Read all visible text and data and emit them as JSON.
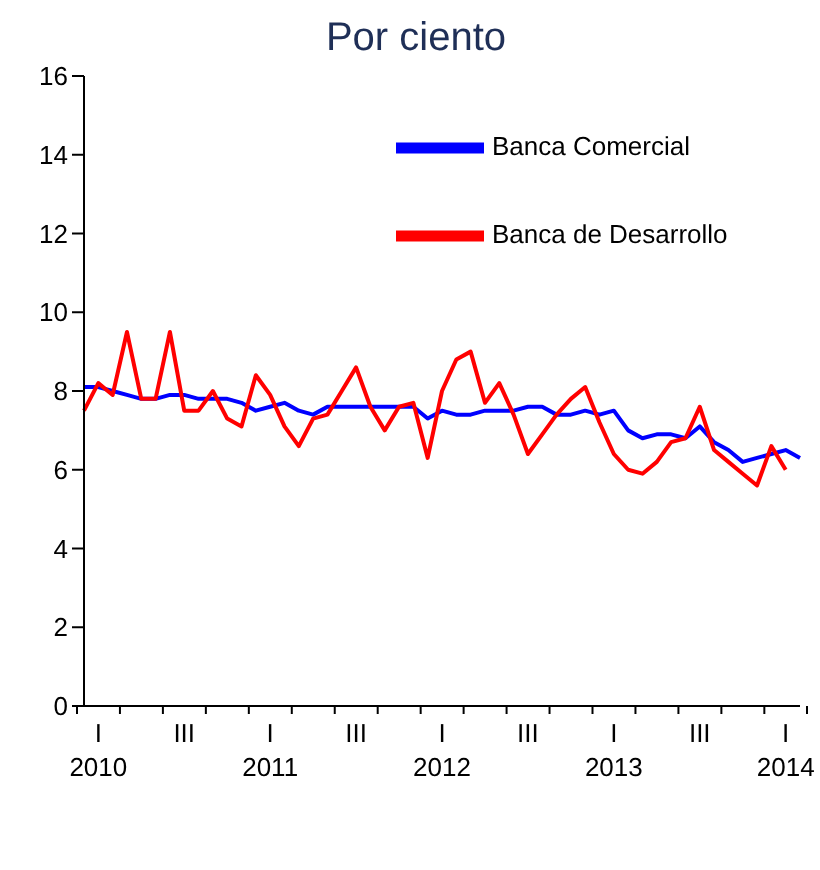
{
  "chart_data": {
    "type": "line",
    "title": "Por ciento",
    "categories": [
      null,
      "I\n2010",
      null,
      null,
      null,
      null,
      null,
      "III",
      null,
      null,
      null,
      null,
      null,
      "I\n2011",
      null,
      null,
      null,
      null,
      null,
      "III",
      null,
      null,
      null,
      null,
      null,
      "I\n2012",
      null,
      null,
      null,
      null,
      null,
      "III",
      null,
      null,
      null,
      null,
      null,
      "I\n2013",
      null,
      null,
      null,
      null,
      null,
      "III",
      null,
      null,
      null,
      null,
      null,
      "I\n2014",
      null
    ],
    "series": [
      {
        "name": "Banca Comercial",
        "color": "#0000ff",
        "values": [
          8.1,
          8.1,
          8.0,
          7.9,
          7.8,
          7.8,
          7.9,
          7.9,
          7.8,
          7.8,
          7.8,
          7.7,
          7.5,
          7.6,
          7.7,
          7.5,
          7.4,
          7.6,
          7.6,
          7.6,
          7.6,
          7.6,
          7.6,
          7.6,
          7.3,
          7.5,
          7.4,
          7.4,
          7.5,
          7.5,
          7.5,
          7.6,
          7.6,
          7.4,
          7.4,
          7.5,
          7.4,
          7.5,
          7.0,
          6.8,
          6.9,
          6.9,
          6.8,
          7.1,
          6.7,
          6.5,
          6.2,
          6.3,
          6.4,
          6.5,
          6.3
        ]
      },
      {
        "name": "Banca de Desarrollo",
        "color": "#ff0000",
        "values": [
          7.5,
          8.2,
          7.9,
          9.5,
          7.8,
          7.8,
          9.5,
          7.5,
          7.5,
          8.0,
          7.3,
          7.1,
          8.4,
          7.9,
          7.1,
          6.6,
          7.3,
          7.4,
          8.0,
          8.6,
          7.6,
          7.0,
          7.6,
          7.7,
          6.3,
          8.0,
          8.8,
          9.0,
          7.7,
          8.2,
          7.4,
          6.4,
          6.9,
          7.4,
          7.8,
          8.1,
          7.2,
          6.4,
          6.0,
          5.9,
          6.2,
          6.7,
          6.8,
          7.6,
          6.5,
          6.2,
          5.9,
          5.6,
          6.6,
          6.0,
          null
        ]
      }
    ],
    "ylim": [
      0,
      16
    ],
    "yticks": [
      0,
      2,
      4,
      6,
      8,
      10,
      12,
      14,
      16
    ],
    "legend": "top right",
    "marker": "none",
    "line_style": "solid"
  }
}
